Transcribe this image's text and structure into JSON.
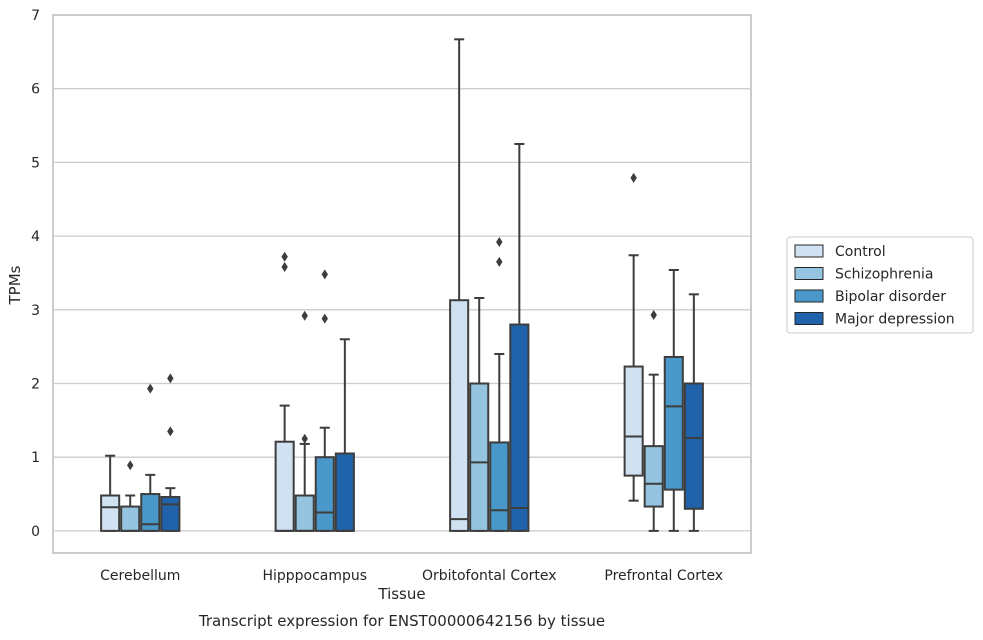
{
  "caption": "Transcript expression for ENST00000642156 by tissue",
  "chart_data": {
    "type": "box",
    "xlabel": "Tissue",
    "ylabel": "TPMs",
    "ylim": [
      -0.3,
      7
    ],
    "yticks": [
      0,
      1,
      2,
      3,
      4,
      5,
      6,
      7
    ],
    "grid": "horizontal",
    "legend_position": "right",
    "categories": [
      "Cerebellum",
      "Hipppocampus",
      "Orbitofontal Cortex",
      "Prefrontal Cortex"
    ],
    "series": [
      {
        "name": "Control",
        "color": "#d0e1f2",
        "boxes": [
          {
            "whislo": 0,
            "q1": 0,
            "med": 0.32,
            "q3": 0.48,
            "whishi": 1.02,
            "fliers": []
          },
          {
            "whislo": 0,
            "q1": 0,
            "med": 0,
            "q3": 1.21,
            "whishi": 1.7,
            "fliers": [
              3.58,
              3.72
            ]
          },
          {
            "whislo": 0,
            "q1": 0,
            "med": 0.16,
            "q3": 3.13,
            "whishi": 6.67,
            "fliers": []
          },
          {
            "whislo": 0.41,
            "q1": 0.75,
            "med": 1.28,
            "q3": 2.23,
            "whishi": 3.74,
            "fliers": [
              4.79
            ]
          }
        ]
      },
      {
        "name": "Schizophrenia",
        "color": "#94c4df",
        "boxes": [
          {
            "whislo": 0,
            "q1": 0,
            "med": 0,
            "q3": 0.33,
            "whishi": 0.48,
            "fliers": [
              0.89
            ]
          },
          {
            "whislo": 0,
            "q1": 0,
            "med": 0,
            "q3": 0.48,
            "whishi": 1.18,
            "fliers": [
              1.25,
              2.92
            ]
          },
          {
            "whislo": 0,
            "q1": 0,
            "med": 0.93,
            "q3": 2.0,
            "whishi": 3.16,
            "fliers": []
          },
          {
            "whislo": 0,
            "q1": 0.33,
            "med": 0.64,
            "q3": 1.15,
            "whishi": 2.12,
            "fliers": [
              2.93
            ]
          }
        ]
      },
      {
        "name": "Bipolar disorder",
        "color": "#4a98c9",
        "boxes": [
          {
            "whislo": 0,
            "q1": 0,
            "med": 0.09,
            "q3": 0.5,
            "whishi": 0.76,
            "fliers": [
              1.93
            ]
          },
          {
            "whislo": 0,
            "q1": 0,
            "med": 0.25,
            "q3": 1.0,
            "whishi": 1.4,
            "fliers": [
              2.88,
              3.48
            ]
          },
          {
            "whislo": 0,
            "q1": 0,
            "med": 0.28,
            "q3": 1.2,
            "whishi": 2.4,
            "fliers": [
              3.65,
              3.92
            ]
          },
          {
            "whislo": 0,
            "q1": 0.56,
            "med": 1.69,
            "q3": 2.36,
            "whishi": 3.54,
            "fliers": []
          }
        ]
      },
      {
        "name": "Major depression",
        "color": "#2163aa",
        "boxes": [
          {
            "whislo": 0,
            "q1": 0,
            "med": 0.36,
            "q3": 0.46,
            "whishi": 0.58,
            "fliers": [
              1.35,
              2.07
            ]
          },
          {
            "whislo": 0,
            "q1": 0,
            "med": 0,
            "q3": 1.05,
            "whishi": 2.6,
            "fliers": []
          },
          {
            "whislo": 0,
            "q1": 0,
            "med": 0.31,
            "q3": 2.8,
            "whishi": 5.25,
            "fliers": []
          },
          {
            "whislo": 0,
            "q1": 0.3,
            "med": 1.26,
            "q3": 2.0,
            "whishi": 3.21,
            "fliers": []
          }
        ]
      }
    ]
  }
}
